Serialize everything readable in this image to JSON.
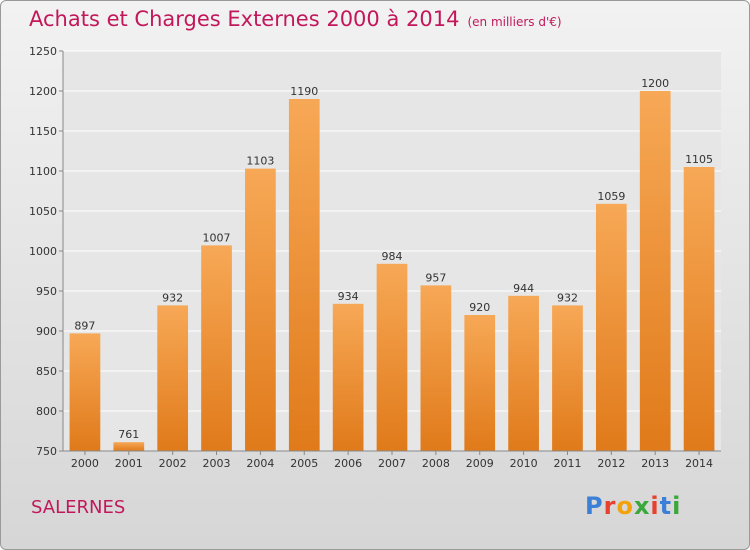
{
  "title": "Achats et Charges Externes 2000 à 2014",
  "subtitle": "(en milliers d'€)",
  "footer_label": "SALERNES",
  "logo_text": "Proxiti",
  "colors": {
    "title": "#c2185b",
    "bar_top": "#f7a856",
    "bar_bottom": "#e07a1a"
  },
  "chart_data": {
    "type": "bar",
    "categories": [
      "2000",
      "2001",
      "2002",
      "2003",
      "2004",
      "2005",
      "2006",
      "2007",
      "2008",
      "2009",
      "2010",
      "2011",
      "2012",
      "2013",
      "2014"
    ],
    "values": [
      897,
      761,
      932,
      1007,
      1103,
      1190,
      934,
      984,
      957,
      920,
      944,
      932,
      1059,
      1200,
      1105
    ],
    "ylim": [
      750,
      1250
    ],
    "yticks": [
      750,
      800,
      850,
      900,
      950,
      1000,
      1050,
      1100,
      1150,
      1200,
      1250
    ],
    "grid": true,
    "xlabel": "",
    "ylabel": ""
  }
}
